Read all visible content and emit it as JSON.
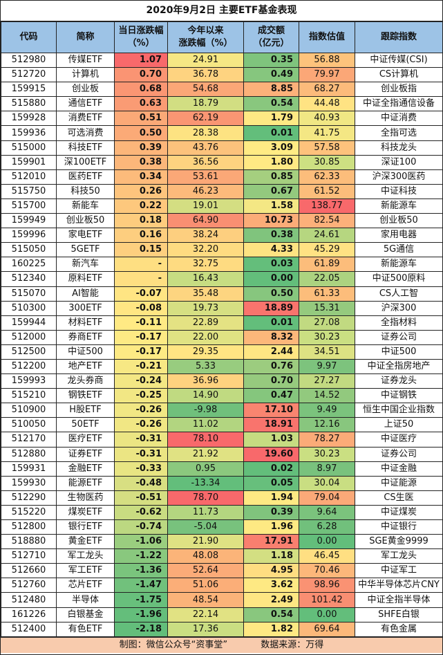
{
  "title": "2020年9月2日 主要ETF基金表现",
  "headers": {
    "code": "代码",
    "name": "简称",
    "daily_change_l1": "当日涨跌幅",
    "daily_change_l2": "（%）",
    "ytd_change_l1": "今年以来",
    "ytd_change_l2": "涨跌幅（%）",
    "turnover_l1": "成交额",
    "turnover_l2": "（亿元）",
    "valuation": "指数估值",
    "index": "跟踪指数"
  },
  "rows": [
    {
      "code": "512980",
      "name": "传媒ETF",
      "daily": "1.07",
      "ytd": "24.91",
      "turnover": "0.35",
      "val": "56.88",
      "index": "中证传媒(CSI)",
      "c": [
        "#f8696b",
        "#f6e784",
        "#7fc47d",
        "#fdc37c"
      ]
    },
    {
      "code": "512720",
      "name": "计算机",
      "daily": "0.70",
      "ytd": "36.78",
      "turnover": "0.49",
      "val": "79.97",
      "index": "CS计算机",
      "c": [
        "#fa9473",
        "#fed380",
        "#86c67e",
        "#fba777"
      ]
    },
    {
      "code": "159915",
      "name": "创业板",
      "daily": "0.68",
      "ytd": "54.68",
      "turnover": "8.85",
      "val": "68.27",
      "index": "创业板指",
      "c": [
        "#fa9673",
        "#fba777",
        "#fcb17a",
        "#fcbb7b"
      ]
    },
    {
      "code": "515880",
      "name": "通信ETF",
      "daily": "0.63",
      "ytd": "18.79",
      "turnover": "0.54",
      "val": "44.48",
      "index": "中证全指通信设备",
      "c": [
        "#fa9b74",
        "#d2de82",
        "#89c77e",
        "#ffe383"
      ]
    },
    {
      "code": "159928",
      "name": "消费ETF",
      "daily": "0.51",
      "ytd": "62.19",
      "turnover": "1.79",
      "val": "40.93",
      "index": "中证消费",
      "c": [
        "#fba977",
        "#fa9673",
        "#ffe984",
        "#f0e784"
      ]
    },
    {
      "code": "159936",
      "name": "可选消费",
      "daily": "0.50",
      "ytd": "28.38",
      "turnover": "0.01",
      "val": "41.75",
      "index": "全指可选",
      "c": [
        "#fbaa77",
        "#fde382",
        "#63be7b",
        "#f4e784"
      ]
    },
    {
      "code": "515000",
      "name": "科技ETF",
      "daily": "0.39",
      "ytd": "43.76",
      "turnover": "3.09",
      "val": "57.58",
      "index": "科技龙头",
      "c": [
        "#fcb67a",
        "#fcc27c",
        "#ffeb84",
        "#fdc27c"
      ]
    },
    {
      "code": "159901",
      "name": "深100ETF",
      "daily": "0.38",
      "ytd": "36.56",
      "turnover": "1.80",
      "val": "30.85",
      "index": "深证100",
      "c": [
        "#fcb77a",
        "#fed380",
        "#ffe984",
        "#cde082"
      ]
    },
    {
      "code": "512010",
      "name": "医药ETF",
      "daily": "0.34",
      "ytd": "53.61",
      "turnover": "0.85",
      "val": "62.33",
      "index": "沪深300医药",
      "c": [
        "#fcbb7b",
        "#fba877",
        "#a5cf7f",
        "#fcbd7b"
      ]
    },
    {
      "code": "515750",
      "name": "科技50",
      "daily": "0.26",
      "ytd": "46.23",
      "turnover": "0.67",
      "val": "61.52",
      "index": "中证科技",
      "c": [
        "#fdc47d",
        "#fcba7b",
        "#93c97e",
        "#fcbd7b"
      ]
    },
    {
      "code": "515700",
      "name": "新能车",
      "daily": "0.22",
      "ytd": "19.01",
      "turnover": "1.58",
      "val": "138.77",
      "index": "新能源车",
      "c": [
        "#fdc87d",
        "#d4de82",
        "#f4e784",
        "#f8696b"
      ]
    },
    {
      "code": "159949",
      "name": "创业板50",
      "daily": "0.18",
      "ytd": "64.90",
      "turnover": "10.73",
      "val": "82.54",
      "index": "创业板50",
      "c": [
        "#fdcc7e",
        "#f98f72",
        "#fbac78",
        "#fcb07a"
      ]
    },
    {
      "code": "159996",
      "name": "家电ETF",
      "daily": "0.16",
      "ytd": "38.24",
      "turnover": "0.38",
      "val": "24.61",
      "index": "家用电器",
      "c": [
        "#fdce7f",
        "#fdcf7f",
        "#80c47d",
        "#b6d680"
      ]
    },
    {
      "code": "515050",
      "name": "5GETF",
      "daily": "0.15",
      "ytd": "32.20",
      "turnover": "4.33",
      "val": "45.29",
      "index": "5G通信",
      "c": [
        "#fdcf7f",
        "#fedb81",
        "#fee382",
        "#ffe283"
      ]
    },
    {
      "code": "160225",
      "name": "新汽车",
      "daily": "-",
      "ytd": "32.75",
      "turnover": "0.03",
      "val": "61.89",
      "index": "新能源车",
      "c": [
        "#fedf82",
        "#fedb81",
        "#64be7b",
        "#fcbd7b"
      ]
    },
    {
      "code": "512340",
      "name": "原料ETF",
      "daily": "-",
      "ytd": "16.43",
      "turnover": "0.00",
      "val": "22.05",
      "index": "中证500原料",
      "c": [
        "#fedf82",
        "#c7dd82",
        "#63be7b",
        "#acd380"
      ]
    },
    {
      "code": "515070",
      "name": "AI智能",
      "daily": "-0.07",
      "ytd": "35.48",
      "turnover": "0.50",
      "val": "61.33",
      "index": "CS人工智",
      "c": [
        "#ffe583",
        "#fdd580",
        "#87c67e",
        "#fcbd7b"
      ]
    },
    {
      "code": "510300",
      "name": "300ETF",
      "daily": "-0.08",
      "ytd": "19.73",
      "turnover": "18.89",
      "val": "15.31",
      "index": "沪深300",
      "c": [
        "#ffe683",
        "#d6df82",
        "#f9746d",
        "#95ca7e"
      ]
    },
    {
      "code": "159944",
      "name": "材料ETF",
      "daily": "-0.11",
      "ytd": "22.89",
      "turnover": "0.01",
      "val": "27.08",
      "index": "全指材料",
      "c": [
        "#ffea84",
        "#e4e283",
        "#63be7b",
        "#c1da81"
      ]
    },
    {
      "code": "512000",
      "name": "券商ETF",
      "daily": "-0.17",
      "ytd": "22.00",
      "turnover": "8.32",
      "val": "30.23",
      "index": "证券公司",
      "c": [
        "#fdea84",
        "#e0e283",
        "#fcb77a",
        "#cadf82"
      ]
    },
    {
      "code": "512500",
      "name": "中证500",
      "daily": "-0.17",
      "ytd": "29.35",
      "turnover": "2.44",
      "val": "34.51",
      "index": "中证500",
      "c": [
        "#fdea84",
        "#ffe583",
        "#fee683",
        "#dde283"
      ]
    },
    {
      "code": "512200",
      "name": "地产ETF",
      "daily": "-0.21",
      "ytd": "5.33",
      "turnover": "0.76",
      "val": "9.97",
      "index": "中证全指房地产",
      "c": [
        "#f7e884",
        "#98cc7f",
        "#9ccc7f",
        "#7dc37d"
      ]
    },
    {
      "code": "159993",
      "name": "龙头券商",
      "daily": "-0.24",
      "ytd": "36.96",
      "turnover": "0.70",
      "val": "27.27",
      "index": "证券龙头",
      "c": [
        "#f3e784",
        "#fed27f",
        "#96ca7e",
        "#c2da81"
      ]
    },
    {
      "code": "515210",
      "name": "钢铁ETF",
      "daily": "-0.25",
      "ytd": "14.90",
      "turnover": "0.47",
      "val": "14.52",
      "index": "中证钢铁",
      "c": [
        "#f2e784",
        "#c0da81",
        "#85c67d",
        "#92c97e"
      ]
    },
    {
      "code": "510900",
      "name": "H股ETF",
      "daily": "-0.26",
      "ytd": "-9.98",
      "turnover": "17.10",
      "val": "9.49",
      "index": "恒生中国企业指数",
      "c": [
        "#f1e784",
        "#70c07c",
        "#f98570",
        "#7bc37d"
      ]
    },
    {
      "code": "510050",
      "name": "50ETF",
      "daily": "-0.26",
      "ytd": "11.02",
      "turnover": "18.91",
      "val": "12.16",
      "index": "上证50",
      "c": [
        "#f1e784",
        "#b2d580",
        "#f9746d",
        "#88c67e"
      ]
    },
    {
      "code": "512170",
      "name": "医疗ETF",
      "daily": "-0.31",
      "ytd": "78.10",
      "turnover": "1.03",
      "val": "78.27",
      "index": "中证医疗",
      "c": [
        "#ebe583",
        "#f8696b",
        "#c6dc81",
        "#fbab78"
      ]
    },
    {
      "code": "512880",
      "name": "证券ETF",
      "daily": "-0.31",
      "ytd": "21.92",
      "turnover": "19.60",
      "val": "30.23",
      "index": "证券公司",
      "c": [
        "#ebe583",
        "#e0e283",
        "#f8696b",
        "#cadf82"
      ]
    },
    {
      "code": "159931",
      "name": "金融ETF",
      "daily": "-0.33",
      "ytd": "0.95",
      "turnover": "0.02",
      "val": "8.97",
      "index": "中证金融",
      "c": [
        "#e8e583",
        "#8bc87e",
        "#63be7b",
        "#79c27d"
      ]
    },
    {
      "code": "159930",
      "name": "能源ETF",
      "daily": "-0.48",
      "ytd": "-13.34",
      "turnover": "0.05",
      "val": "30.04",
      "index": "中证能源",
      "c": [
        "#d8df82",
        "#63be7b",
        "#67bf7c",
        "#c9de82"
      ]
    },
    {
      "code": "512290",
      "name": "生物医药",
      "daily": "-0.51",
      "ytd": "78.70",
      "turnover": "1.94",
      "val": "79.04",
      "index": "CS生医",
      "c": [
        "#d5de82",
        "#f8696b",
        "#fee983",
        "#fba978"
      ]
    },
    {
      "code": "515220",
      "name": "煤炭ETF",
      "daily": "-0.62",
      "ytd": "11.73",
      "turnover": "0.39",
      "val": "9.64",
      "index": "中证煤炭",
      "c": [
        "#c9dc81",
        "#b4d680",
        "#80c47d",
        "#7bc37d"
      ]
    },
    {
      "code": "512800",
      "name": "银行ETF",
      "daily": "-0.74",
      "ytd": "-5.04",
      "turnover": "1.96",
      "val": "6.28",
      "index": "中证银行",
      "c": [
        "#bcd881",
        "#78c27d",
        "#fee983",
        "#71c07c"
      ]
    },
    {
      "code": "518880",
      "name": "黄金ETF",
      "daily": "-1.06",
      "ytd": "21.90",
      "turnover": "17.91",
      "val": "0.00",
      "index": "SGE黄金9999",
      "c": [
        "#9ace7f",
        "#dfe283",
        "#f97f6f",
        "#63be7b"
      ]
    },
    {
      "code": "512710",
      "name": "军工龙头",
      "daily": "-1.22",
      "ytd": "48.08",
      "turnover": "1.18",
      "val": "46.45",
      "index": "军工龙头",
      "c": [
        "#89c87e",
        "#fbb479",
        "#d3df82",
        "#ffdf82"
      ]
    },
    {
      "code": "512660",
      "name": "军工ETF",
      "daily": "-1.36",
      "ytd": "52.64",
      "turnover": "4.95",
      "val": "70.46",
      "index": "中证军工",
      "c": [
        "#7ac47d",
        "#fbab78",
        "#fedd81",
        "#fcb77a"
      ]
    },
    {
      "code": "512760",
      "name": "芯片ETF",
      "daily": "-1.47",
      "ytd": "51.06",
      "turnover": "3.62",
      "val": "98.96",
      "index": "中华半导体芯片CNY",
      "c": [
        "#71c17c",
        "#fbae78",
        "#fee983",
        "#fa9273"
      ]
    },
    {
      "code": "512480",
      "name": "半导体",
      "daily": "-1.75",
      "ytd": "48.54",
      "turnover": "2.49",
      "val": "101.42",
      "index": "中证全指半导体",
      "c": [
        "#68bf7c",
        "#fbb379",
        "#fee683",
        "#f98e72"
      ]
    },
    {
      "code": "161226",
      "name": "白银基金",
      "daily": "-1.96",
      "ytd": "22.14",
      "turnover": "0.54",
      "val": "0.00",
      "index": "SHFE白银",
      "c": [
        "#64be7b",
        "#e1e283",
        "#89c77e",
        "#63be7b"
      ]
    },
    {
      "code": "512400",
      "name": "有色ETF",
      "daily": "-2.18",
      "ytd": "17.36",
      "turnover": "1.82",
      "val": "69.64",
      "index": "有色金属",
      "c": [
        "#63be7b",
        "#cade82",
        "#fee883",
        "#fcb87a"
      ]
    }
  ],
  "footer": {
    "credit": "制图：微信公众号“资事堂”",
    "source": "数据来源：万得"
  }
}
